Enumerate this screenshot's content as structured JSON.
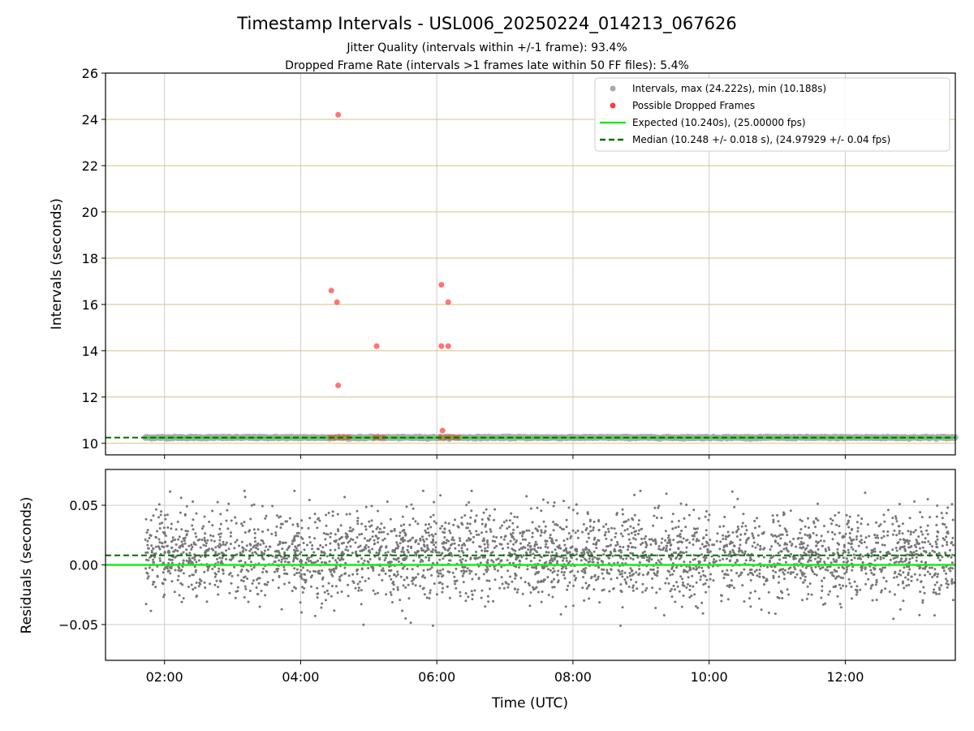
{
  "title": "Timestamp Intervals - USL006_20250224_014213_067626",
  "subtitle1": "Jitter Quality (intervals within +/-1 frame): 93.4%",
  "subtitle2": "Dropped Frame Rate (intervals >1 frames late within 50 FF files): 5.4%",
  "colors": {
    "intervals": "#a9a9a9",
    "dropped": "#ff3b3b",
    "expected": "#1ee81e",
    "median": "#007000",
    "residuals": "#767676",
    "grid_major": "#d4c088",
    "grid_minor": "#cccccc"
  },
  "chart_data": [
    {
      "type": "scatter",
      "panel": "top",
      "xlabel": "",
      "ylabel": "Intervals (seconds)",
      "xlim": [
        "01:08",
        "13:37"
      ],
      "ylim": [
        9.5,
        26
      ],
      "yticks": [
        10,
        12,
        14,
        16,
        18,
        20,
        22,
        24,
        26
      ],
      "ytick_labels": [
        "10",
        "12",
        "14",
        "16",
        "18",
        "20",
        "22",
        "24",
        "26"
      ],
      "grid": true,
      "legend_position": "top-right",
      "legend": [
        "Intervals, max (24.222s), min (10.188s)",
        "Possible Dropped Frames",
        "Expected (10.240s), (25.00000 fps)",
        "Median (10.248 +/- 0.018 s), (24.97929 +/- 0.04 fps)"
      ],
      "series": [
        {
          "name": "Intervals, max (24.222s), min (10.188s)",
          "style": "points",
          "x_range": [
            "01:43",
            "13:37"
          ],
          "y_range": [
            10.188,
            10.29
          ],
          "typical_y": 10.248
        },
        {
          "name": "Possible Dropped Frames",
          "style": "points",
          "x": [
            "04:33",
            "04:27",
            "04:32",
            "04:33",
            "05:07",
            "06:04",
            "06:04",
            "06:10",
            "06:10",
            "06:05",
            "04:26",
            "04:30",
            "04:34",
            "04:38",
            "04:42",
            "05:05",
            "05:09",
            "05:13",
            "06:03",
            "06:07",
            "06:11",
            "06:15",
            "06:19"
          ],
          "y": [
            24.2,
            16.6,
            16.1,
            12.5,
            14.2,
            16.85,
            14.2,
            14.2,
            16.1,
            10.55,
            10.25,
            10.25,
            10.25,
            10.25,
            10.25,
            10.25,
            10.25,
            10.25,
            10.25,
            10.25,
            10.25,
            10.25,
            10.25
          ]
        },
        {
          "name": "Expected (10.240s), (25.00000 fps)",
          "style": "hline",
          "y": 10.24
        },
        {
          "name": "Median (10.248 +/- 0.018 s), (24.97929 +/- 0.04 fps)",
          "style": "hline-dashed",
          "y": 10.248
        }
      ]
    },
    {
      "type": "scatter",
      "panel": "bottom",
      "xlabel": "Time (UTC)",
      "ylabel": "Residuals (seconds)",
      "xlim": [
        "01:08",
        "13:37"
      ],
      "ylim": [
        -0.08,
        0.08
      ],
      "xticks": [
        "02:00",
        "04:00",
        "06:00",
        "08:00",
        "10:00",
        "12:00"
      ],
      "yticks": [
        -0.05,
        0.0,
        0.05
      ],
      "ytick_labels": [
        "−0.05",
        "0.00",
        "0.05"
      ],
      "grid": true,
      "series": [
        {
          "name": "Residuals",
          "style": "points",
          "x_range": [
            "01:43",
            "13:37"
          ],
          "y_range": [
            -0.051,
            0.062
          ],
          "center": 0.008,
          "spread": 0.018
        },
        {
          "name": "Expected",
          "style": "hline",
          "y": 0.0
        },
        {
          "name": "Median",
          "style": "hline-dashed",
          "y": 0.008
        }
      ]
    }
  ]
}
